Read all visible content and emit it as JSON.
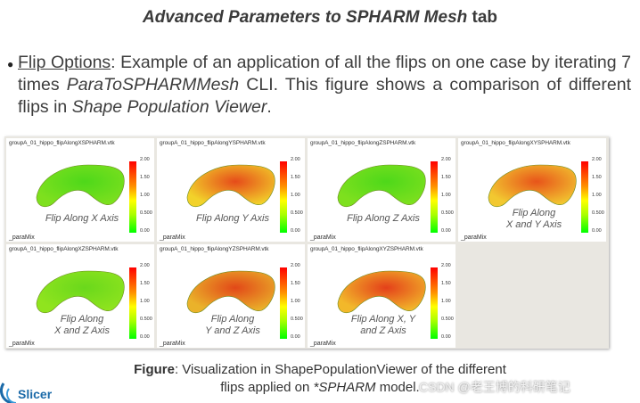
{
  "title": {
    "part1": "Advanced Parameters to SPHARM Mesh",
    "part2": " tab"
  },
  "bullet": {
    "lead": "Flip Options",
    "text1": ": Example of an application of all the flips on one case by iterating 7 times ",
    "cli": "ParaToSPHARMMesh",
    "text2": " CLI. This figure shows a comparison of different flips in ",
    "viewer": "Shape Population Viewer",
    "text3": "."
  },
  "colors": {
    "grid_bg": "#e9e7e1",
    "logo_blue": "#1b6aa8"
  },
  "colorbar_ticks": [
    "2.00",
    "1.50",
    "1.00",
    "0.500",
    "0.00"
  ],
  "cells": [
    {
      "file": "groupA_01_hippo_flipAlongXSPHARM.vtk",
      "label1": "Flip Along X Axis",
      "label2": "",
      "foot": "_paraMix"
    },
    {
      "file": "groupA_01_hippo_flipAlongYSPHARM.vtk",
      "label1": "Flip Along Y Axis",
      "label2": "",
      "foot": "_paraMix"
    },
    {
      "file": "groupA_01_hippo_flipAlongZSPHARM.vtk",
      "label1": "Flip Along Z Axis",
      "label2": "",
      "foot": "_paraMix"
    },
    {
      "file": "groupA_01_hippo_flipAlongXYSPHARM.vtk",
      "label1": "Flip Along",
      "label2": "X and Y Axis",
      "foot": "_paraMix"
    },
    {
      "file": "groupA_01_hippo_flipAlongXZSPHARM.vtk",
      "label1": "Flip Along",
      "label2": "X and Z Axis",
      "foot": "_paraMix"
    },
    {
      "file": "groupA_01_hippo_flipAlongYZSPHARM.vtk",
      "label1": "Flip Along",
      "label2": "Y and Z Axis",
      "foot": "_paraMix"
    },
    {
      "file": "groupA_01_hippo_flipAlongXYZSPHARM.vtk",
      "label1": "Flip Along X, Y",
      "label2": "and Z Axis",
      "foot": "_paraMix"
    }
  ],
  "caption": {
    "bold": "Figure",
    "line1": ": Visualization in ShapePopulationViewer of the different",
    "line2a": "flips applied on ",
    "line2b": "*SPHARM",
    "line2c": " model."
  },
  "logo": {
    "text": "Slicer"
  },
  "watermark": "CSDN @老王博的科研笔记"
}
